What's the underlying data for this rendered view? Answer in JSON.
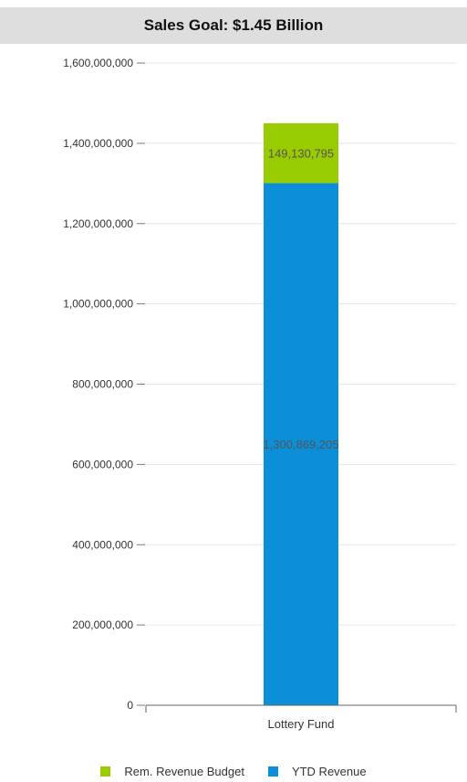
{
  "header": {
    "title": "Sales Goal: $1.45 Billion"
  },
  "chart_data": {
    "type": "bar",
    "stacked": true,
    "categories": [
      "Lottery Fund"
    ],
    "series": [
      {
        "name": "YTD Revenue",
        "values": [
          1300869205
        ],
        "label": "1,300,869,205",
        "color": "#0a8fd8"
      },
      {
        "name": "Rem. Revenue Budget",
        "values": [
          149130795
        ],
        "label": "149,130,795",
        "color": "#99cc00"
      }
    ],
    "ylim": [
      0,
      1600000000
    ],
    "yticks": [
      {
        "value": 0,
        "label": "0"
      },
      {
        "value": 200000000,
        "label": "200,000,000"
      },
      {
        "value": 400000000,
        "label": "400,000,000"
      },
      {
        "value": 600000000,
        "label": "600,000,000"
      },
      {
        "value": 800000000,
        "label": "800,000,000"
      },
      {
        "value": 1000000000,
        "label": "1,000,000,000"
      },
      {
        "value": 1200000000,
        "label": "1,200,000,000"
      },
      {
        "value": 1400000000,
        "label": "1,400,000,000"
      },
      {
        "value": 1600000000,
        "label": "1,600,000,000"
      }
    ],
    "grid": true,
    "legend_position": "bottom"
  },
  "legend": [
    {
      "label": "Rem. Revenue Budget",
      "color": "#99cc00"
    },
    {
      "label": "YTD Revenue",
      "color": "#0a8fd8"
    }
  ]
}
